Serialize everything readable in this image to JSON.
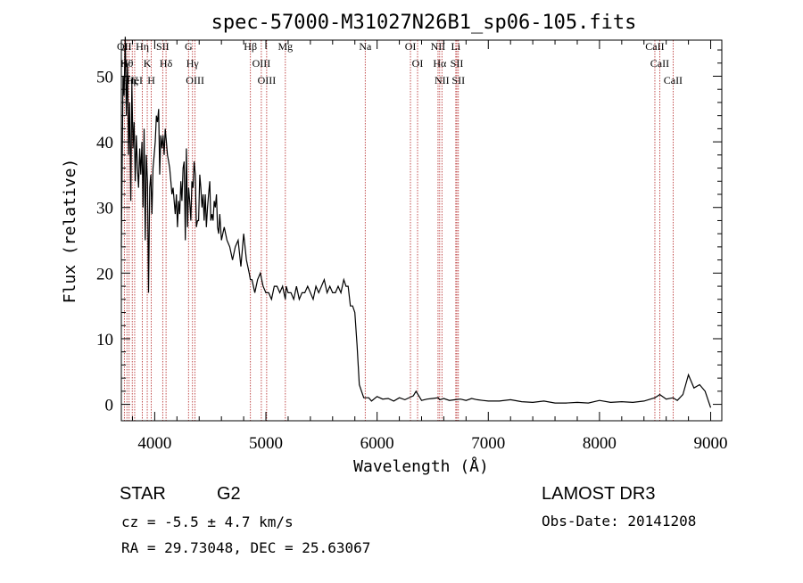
{
  "chart_data": {
    "type": "line",
    "title": "spec-57000-M31027N26B1_sp06-105.fits",
    "xlabel": "Wavelength (Å)",
    "ylabel": "Flux (relative)",
    "xlim": [
      3700,
      9100
    ],
    "ylim": [
      -2.5,
      55.5
    ],
    "xticks": [
      4000,
      5000,
      6000,
      7000,
      8000,
      9000
    ],
    "yticks": [
      0,
      10,
      20,
      30,
      40,
      50
    ],
    "grid": false,
    "line_color": "#000000",
    "marker_color": "#b22222",
    "spectrum": {
      "x": [
        3700,
        3715,
        3725,
        3735,
        3745,
        3755,
        3765,
        3775,
        3785,
        3795,
        3805,
        3815,
        3825,
        3835,
        3845,
        3855,
        3865,
        3875,
        3885,
        3895,
        3905,
        3915,
        3925,
        3935,
        3945,
        3955,
        3965,
        3975,
        3985,
        3995,
        4005,
        4015,
        4025,
        4035,
        4045,
        4055,
        4065,
        4075,
        4085,
        4095,
        4105,
        4115,
        4125,
        4135,
        4145,
        4155,
        4165,
        4175,
        4185,
        4195,
        4205,
        4215,
        4225,
        4235,
        4245,
        4255,
        4265,
        4275,
        4285,
        4295,
        4305,
        4315,
        4325,
        4335,
        4345,
        4355,
        4365,
        4375,
        4385,
        4395,
        4405,
        4415,
        4425,
        4435,
        4445,
        4455,
        4465,
        4475,
        4485,
        4495,
        4505,
        4515,
        4525,
        4535,
        4545,
        4555,
        4565,
        4575,
        4585,
        4600,
        4625,
        4650,
        4675,
        4700,
        4725,
        4750,
        4775,
        4800,
        4825,
        4850,
        4860,
        4875,
        4900,
        4925,
        4950,
        4975,
        5000,
        5025,
        5050,
        5075,
        5100,
        5125,
        5150,
        5175,
        5183,
        5200,
        5225,
        5250,
        5275,
        5300,
        5325,
        5350,
        5375,
        5400,
        5425,
        5450,
        5475,
        5500,
        5525,
        5550,
        5575,
        5600,
        5625,
        5650,
        5675,
        5700,
        5720,
        5740,
        5760,
        5780,
        5800,
        5820,
        5840,
        5860,
        5880,
        5900,
        5925,
        5950,
        6000,
        6050,
        6100,
        6150,
        6200,
        6250,
        6300,
        6325,
        6350,
        6400,
        6450,
        6500,
        6550,
        6563,
        6600,
        6650,
        6700,
        6750,
        6800,
        6850,
        6900,
        6950,
        7000,
        7100,
        7200,
        7300,
        7400,
        7500,
        7600,
        7700,
        7800,
        7900,
        8000,
        8100,
        8200,
        8300,
        8400,
        8498,
        8542,
        8600,
        8662,
        8700,
        8750,
        8800,
        8850,
        8900,
        8950,
        9000
      ],
      "y": [
        24,
        50,
        47,
        56,
        44,
        52,
        38,
        46,
        31,
        49,
        39,
        43,
        34,
        41,
        36,
        33,
        39,
        35,
        40,
        30,
        42,
        25,
        38,
        34,
        17,
        33,
        35,
        29,
        36,
        38,
        40,
        44,
        43,
        45,
        35,
        41,
        39,
        41,
        38,
        42,
        40,
        38,
        37,
        36,
        34,
        32,
        33,
        31,
        29,
        32,
        27,
        31,
        29,
        34,
        31,
        36,
        37,
        25,
        39,
        27,
        33,
        31,
        28,
        34,
        33,
        37,
        35,
        27,
        28,
        28,
        35,
        33,
        30,
        32,
        28,
        32,
        27,
        30,
        32,
        34,
        28,
        29,
        28,
        31,
        30,
        32,
        27,
        26,
        29,
        25,
        27,
        25,
        24,
        22,
        24,
        25,
        21,
        26,
        22,
        20,
        19,
        19,
        17,
        19,
        20,
        18,
        17,
        17,
        16,
        18,
        18,
        17,
        18,
        16,
        18,
        17,
        17,
        16,
        18,
        16,
        17,
        17,
        18,
        17,
        16,
        18,
        17,
        18,
        19,
        17,
        18,
        17,
        17,
        18,
        17,
        19,
        18,
        18,
        15,
        15,
        14,
        9,
        3,
        2,
        1,
        1,
        1,
        0.5,
        1.2,
        0.8,
        0.9,
        0.5,
        1,
        0.7,
        1.1,
        1.3,
        2,
        0.6,
        0.8,
        0.9,
        1,
        0.7,
        0.9,
        0.6,
        0.7,
        0.8,
        0.6,
        0.9,
        0.7,
        0.6,
        0.5,
        0.5,
        0.7,
        0.4,
        0.3,
        0.5,
        0.2,
        0.2,
        0.3,
        0.2,
        0.6,
        0.3,
        0.4,
        0.3,
        0.5,
        1,
        1.5,
        0.8,
        1,
        0.6,
        1.5,
        4.5,
        2.5,
        3,
        2,
        -0.5
      ]
    },
    "lines": [
      {
        "wave": 3727,
        "labels": [
          "OII"
        ]
      },
      {
        "wave": 3750,
        "labels": [
          "Hθ"
        ]
      },
      {
        "wave": 3770,
        "labels": [
          "Hη"
        ]
      },
      {
        "wave": 3798,
        "labels": [
          "Hζ"
        ]
      },
      {
        "wave": 3820,
        "labels": [
          "HeI"
        ]
      },
      {
        "wave": 3889,
        "labels": [
          "Hη"
        ]
      },
      {
        "wave": 3933,
        "labels": [
          "K"
        ]
      },
      {
        "wave": 3969,
        "labels": [
          "H"
        ]
      },
      {
        "wave": 4072,
        "labels": [
          "SII"
        ]
      },
      {
        "wave": 4102,
        "labels": [
          "Hδ"
        ]
      },
      {
        "wave": 4304,
        "labels": [
          "G"
        ]
      },
      {
        "wave": 4340,
        "labels": [
          "Hγ"
        ]
      },
      {
        "wave": 4363,
        "labels": [
          "OIII"
        ]
      },
      {
        "wave": 4861,
        "labels": [
          "Hβ"
        ]
      },
      {
        "wave": 4959,
        "labels": [
          "OIII"
        ]
      },
      {
        "wave": 5007,
        "labels": [
          "OIII"
        ]
      },
      {
        "wave": 5175,
        "labels": [
          "Mg"
        ]
      },
      {
        "wave": 5893,
        "labels": [
          "Na"
        ]
      },
      {
        "wave": 6300,
        "labels": [
          "OI"
        ]
      },
      {
        "wave": 6364,
        "labels": [
          "OI"
        ]
      },
      {
        "wave": 6548,
        "labels": [
          "NII"
        ]
      },
      {
        "wave": 6563,
        "labels": [
          "Hα"
        ]
      },
      {
        "wave": 6583,
        "labels": [
          "NII"
        ]
      },
      {
        "wave": 6708,
        "labels": [
          "Li"
        ]
      },
      {
        "wave": 6717,
        "labels": [
          "SII"
        ]
      },
      {
        "wave": 6731,
        "labels": [
          "SII"
        ]
      },
      {
        "wave": 8498,
        "labels": [
          "CaII"
        ]
      },
      {
        "wave": 8542,
        "labels": [
          "CaII"
        ]
      },
      {
        "wave": 8662,
        "labels": [
          "CaII"
        ]
      }
    ]
  },
  "info": {
    "object_class": "STAR",
    "subclass": "G2",
    "survey": "LAMOST DR3",
    "redshift": "cz = -5.5 ± 4.7 km/s",
    "obs_date": "Obs-Date: 20141208",
    "coords": "RA =  29.73048, DEC =  25.63067"
  }
}
